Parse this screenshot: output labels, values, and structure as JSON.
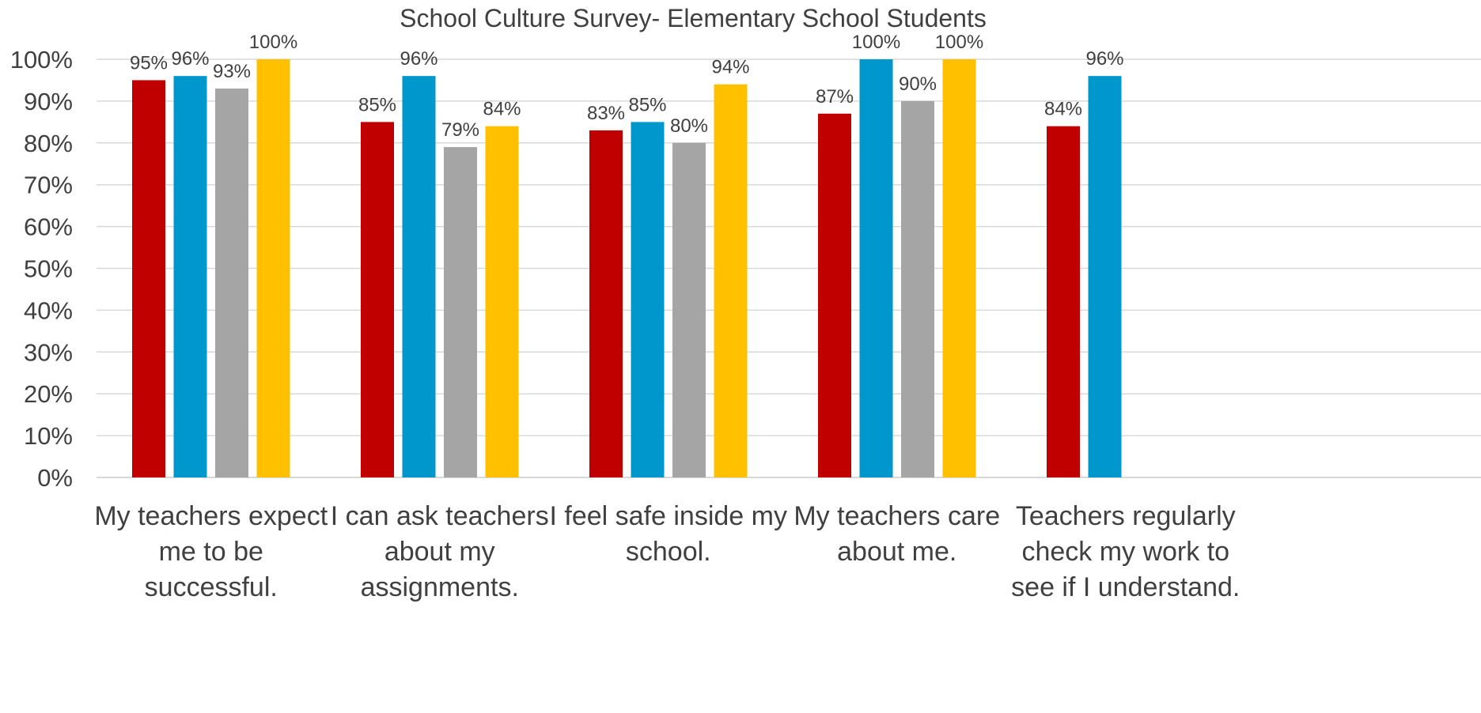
{
  "chart_data": {
    "type": "bar",
    "title": "School Culture Survey- Elementary School Students",
    "xlabel": "",
    "ylabel": "",
    "ylim": [
      0,
      100
    ],
    "yticks": [
      "0%",
      "10%",
      "20%",
      "30%",
      "40%",
      "50%",
      "60%",
      "70%",
      "80%",
      "90%",
      "100%"
    ],
    "grid": true,
    "legend": "none",
    "categories": [
      [
        "My teachers expect",
        "me to be",
        "successful."
      ],
      [
        "I can ask teachers",
        "about my",
        "assignments."
      ],
      [
        "I feel safe inside my",
        "school."
      ],
      [
        "My teachers care",
        "about me."
      ],
      [
        "Teachers regularly",
        "check my work to",
        "see if I understand."
      ]
    ],
    "series": [
      {
        "color": "#c00000",
        "values": [
          95,
          85,
          83,
          87,
          84
        ],
        "labels": [
          "95%",
          "85%",
          "83%",
          "87%",
          "84%"
        ]
      },
      {
        "color": "#0098cc",
        "values": [
          96,
          96,
          85,
          100,
          96
        ],
        "labels": [
          "96%",
          "96%",
          "85%",
          "100%",
          "96%"
        ]
      },
      {
        "color": "#a5a5a5",
        "values": [
          93,
          79,
          80,
          90,
          null
        ],
        "labels": [
          "93%",
          "79%",
          "80%",
          "90%",
          null
        ]
      },
      {
        "color": "#ffc000",
        "values": [
          100,
          84,
          94,
          100,
          null
        ],
        "labels": [
          "100%",
          "84%",
          "94%",
          "100%",
          null
        ]
      }
    ]
  }
}
